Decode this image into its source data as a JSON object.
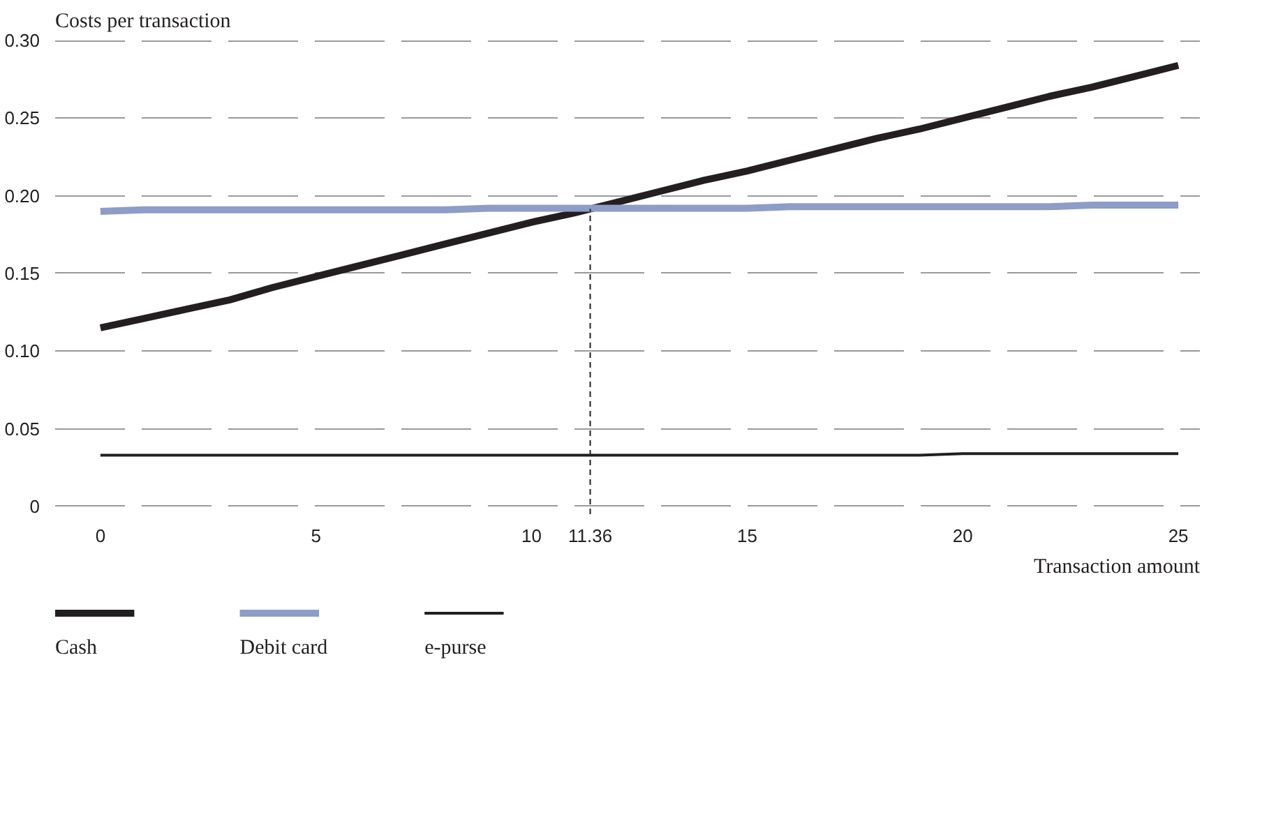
{
  "chart_data": {
    "type": "line",
    "ylabel": "Costs per transaction",
    "xlabel": "Transaction amount",
    "x": [
      0,
      1,
      2,
      3,
      4,
      5,
      6,
      7,
      8,
      9,
      10,
      11,
      12,
      13,
      14,
      15,
      16,
      17,
      18,
      19,
      20,
      21,
      22,
      23,
      24,
      25
    ],
    "series": [
      {
        "name": "Cash",
        "color": "#231f20",
        "values": [
          0.115,
          0.121,
          0.127,
          0.133,
          0.141,
          0.148,
          0.155,
          0.162,
          0.169,
          0.176,
          0.183,
          0.189,
          0.196,
          0.203,
          0.21,
          0.216,
          0.223,
          0.23,
          0.237,
          0.243,
          0.25,
          0.257,
          0.264,
          0.27,
          0.277,
          0.284
        ]
      },
      {
        "name": "Debit card",
        "color": "#8e9cc8",
        "values": [
          0.19,
          0.191,
          0.191,
          0.191,
          0.191,
          0.191,
          0.191,
          0.191,
          0.191,
          0.192,
          0.192,
          0.192,
          0.192,
          0.192,
          0.192,
          0.192,
          0.193,
          0.193,
          0.193,
          0.193,
          0.193,
          0.193,
          0.193,
          0.194,
          0.194,
          0.194
        ]
      },
      {
        "name": "e-purse",
        "color": "#231f20",
        "values": [
          0.033,
          0.033,
          0.033,
          0.033,
          0.033,
          0.033,
          0.033,
          0.033,
          0.033,
          0.033,
          0.033,
          0.033,
          0.033,
          0.033,
          0.033,
          0.033,
          0.033,
          0.033,
          0.033,
          0.033,
          0.034,
          0.034,
          0.034,
          0.034,
          0.034,
          0.034
        ]
      }
    ],
    "xlim": [
      -1.05,
      25.5
    ],
    "xticks": [
      0,
      5,
      10,
      11.36,
      15,
      20,
      25
    ],
    "ylim": [
      -0.005,
      0.3005
    ],
    "yticks": [
      {
        "value": 0,
        "label": "0"
      },
      {
        "value": 0.05,
        "label": "0.05"
      },
      {
        "value": 0.1,
        "label": "0.10"
      },
      {
        "value": 0.15,
        "label": "0.15"
      },
      {
        "value": 0.2,
        "label": "0.20"
      },
      {
        "value": 0.25,
        "label": "0.25"
      },
      {
        "value": 0.3,
        "label": "0.30"
      }
    ],
    "grid": "y",
    "legend": "bottom",
    "marker": "none",
    "line_style": "solid",
    "ref_lines": [
      {
        "axis": "x",
        "value": 11.36,
        "line_style": "dashed",
        "color": "#231f20"
      }
    ]
  }
}
